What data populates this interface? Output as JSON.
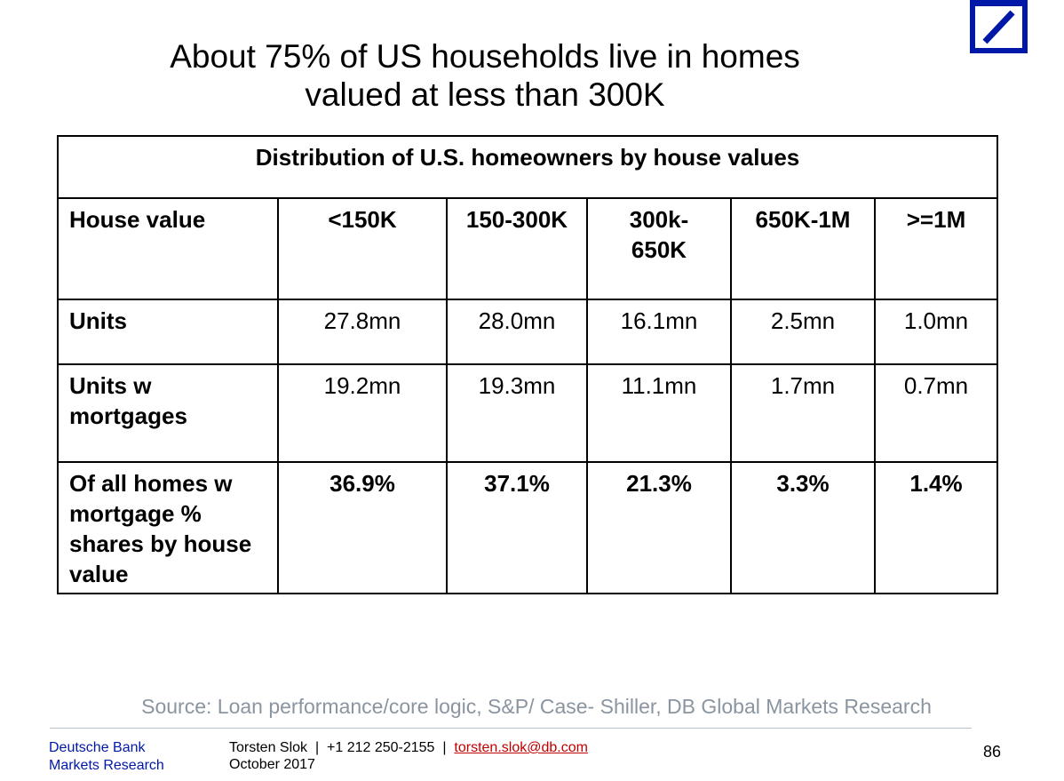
{
  "logo": {
    "brand_color": "#0018a8",
    "icon": "deutsche-bank-slash-logo"
  },
  "title": {
    "line1": "About 75% of US households live in homes",
    "line2": "valued at less than 300K"
  },
  "table": {
    "caption": "Distribution of U.S. homeowners by house values",
    "header": {
      "label": "House value",
      "cols": [
        "<150K",
        "150-300K",
        "300k-650K",
        "650K-1M",
        ">=1M"
      ]
    },
    "rows": [
      {
        "label": "Units",
        "values": [
          "27.8mn",
          "28.0mn",
          "16.1mn",
          "2.5mn",
          "1.0mn"
        ]
      },
      {
        "label": "Units w mortgages",
        "values": [
          "19.2mn",
          "19.3mn",
          "11.1mn",
          "1.7mn",
          "0.7mn"
        ]
      },
      {
        "label": "Of all homes w mortgage % shares by house value",
        "values": [
          "36.9%",
          "37.1%",
          "21.3%",
          "3.3%",
          "1.4%"
        ]
      }
    ]
  },
  "source": "Source: Loan performance/core logic, S&P/ Case- Shiller, DB Global Markets Research",
  "footer": {
    "org_line1": "Deutsche Bank",
    "org_line2": "Markets Research",
    "author": "Torsten Slok",
    "phone": "+1 212 250-2155",
    "email": "torsten.slok@db.com",
    "date": "October 2017",
    "page": "86"
  }
}
